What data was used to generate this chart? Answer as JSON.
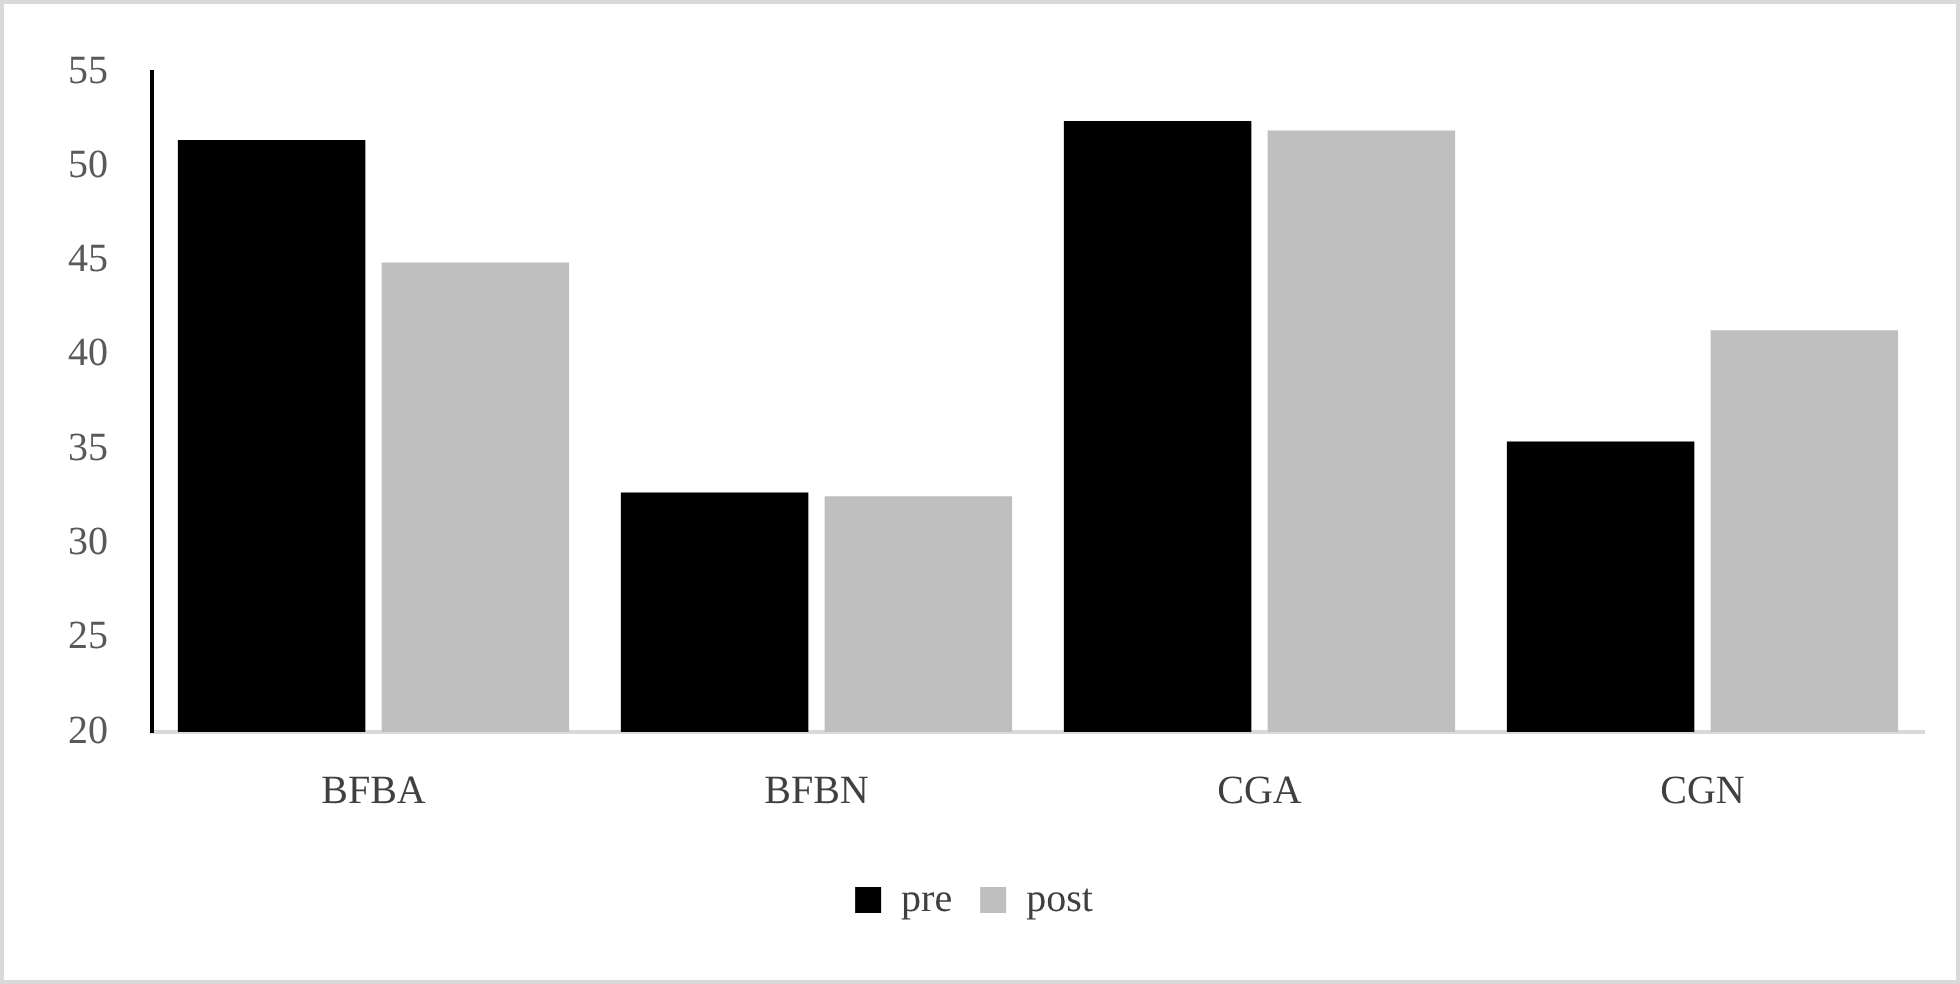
{
  "chart_data": {
    "type": "bar",
    "categories": [
      "BFBA",
      "BFBN",
      "CGA",
      "CGN"
    ],
    "series": [
      {
        "name": "pre",
        "color": "#000000",
        "values": [
          51.4,
          32.7,
          52.4,
          35.4
        ]
      },
      {
        "name": "post",
        "color": "#bfbfbf",
        "values": [
          44.9,
          32.5,
          51.9,
          41.3
        ]
      }
    ],
    "ylim": [
      20,
      55
    ],
    "yticks": [
      20,
      25,
      30,
      35,
      40,
      45,
      50,
      55
    ],
    "grid": false,
    "legend": "bottom"
  }
}
